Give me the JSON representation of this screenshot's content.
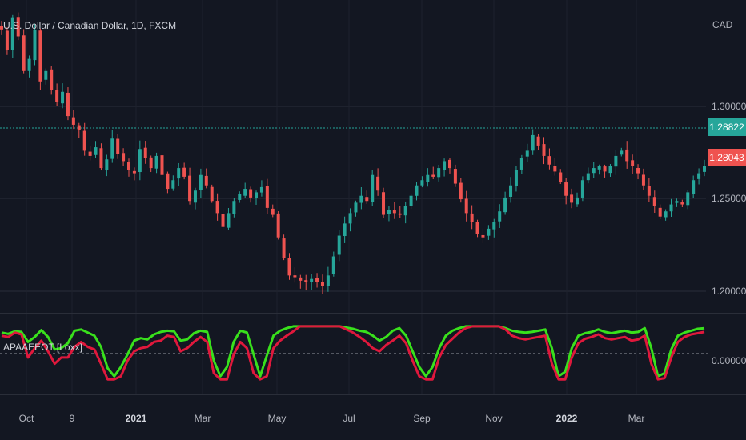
{
  "chart_data": [
    {
      "type": "candlestick",
      "title": "U.S. Dollar / Canadian Dollar, 1D, FXCM",
      "currency_label": "CAD",
      "y_ticks": [
        "1.30000",
        "1.25000",
        "1.20000"
      ],
      "ylim": [
        1.191,
        1.372
      ],
      "last_price": "1.28822",
      "last_price_value": 1.28822,
      "ma_value_label": "1.28043",
      "ma_value": 1.28043,
      "bullish_color": "#26a69a",
      "bearish_color": "#ef5350",
      "close_series": [
        1.355,
        1.343,
        1.362,
        1.351,
        1.331,
        1.338,
        1.355,
        1.325,
        1.331,
        1.32,
        1.313,
        1.319,
        1.305,
        1.3,
        1.297,
        1.285,
        1.282,
        1.287,
        1.275,
        1.28,
        1.292,
        1.283,
        1.279,
        1.274,
        1.272,
        1.286,
        1.281,
        1.275,
        1.282,
        1.271,
        1.263,
        1.268,
        1.275,
        1.27,
        1.256,
        1.262,
        1.271,
        1.265,
        1.256,
        1.249,
        1.241,
        1.249,
        1.256,
        1.26,
        1.263,
        1.258,
        1.261,
        1.264,
        1.252,
        1.248,
        1.235,
        1.223,
        1.213,
        1.212,
        1.21,
        1.209,
        1.211,
        1.209,
        1.207,
        1.213,
        1.224,
        1.236,
        1.243,
        1.249,
        1.255,
        1.259,
        1.256,
        1.271,
        1.262,
        1.248,
        1.251,
        1.249,
        1.248,
        1.253,
        1.259,
        1.265,
        1.268,
        1.271,
        1.27,
        1.275,
        1.279,
        1.275,
        1.266,
        1.257,
        1.249,
        1.244,
        1.237,
        1.235,
        1.24,
        1.244,
        1.25,
        1.258,
        1.265,
        1.274,
        1.281,
        1.285,
        1.294,
        1.288,
        1.282,
        1.277,
        1.273,
        1.267,
        1.259,
        1.255,
        1.258,
        1.268,
        1.272,
        1.275,
        1.276,
        1.273,
        1.276,
        1.282,
        1.285,
        1.279,
        1.276,
        1.272,
        1.265,
        1.259,
        1.253,
        1.247,
        1.25,
        1.254,
        1.256,
        1.254,
        1.261,
        1.268,
        1.272,
        1.276
      ]
    },
    {
      "type": "line",
      "name": "APAAEEOT [Loxx]",
      "y_ticks": [
        "0.00000"
      ],
      "ylim": [
        0,
        1
      ],
      "series": [
        {
          "color": "#39e01c",
          "values": [
            0.85,
            0.83,
            0.87,
            0.86,
            0.7,
            0.78,
            0.89,
            0.78,
            0.58,
            0.6,
            0.68,
            0.88,
            0.9,
            0.85,
            0.8,
            0.62,
            0.28,
            0.15,
            0.3,
            0.5,
            0.72,
            0.76,
            0.74,
            0.82,
            0.86,
            0.88,
            0.87,
            0.72,
            0.74,
            0.84,
            0.88,
            0.86,
            0.4,
            0.15,
            0.3,
            0.7,
            0.88,
            0.85,
            0.5,
            0.15,
            0.48,
            0.8,
            0.88,
            0.92,
            0.95,
            0.95,
            0.95,
            0.95,
            0.95,
            0.95,
            0.95,
            0.95,
            0.93,
            0.91,
            0.88,
            0.86,
            0.8,
            0.72,
            0.78,
            0.88,
            0.92,
            0.8,
            0.55,
            0.3,
            0.15,
            0.3,
            0.6,
            0.8,
            0.88,
            0.92,
            0.95,
            0.95,
            0.95,
            0.95,
            0.95,
            0.95,
            0.92,
            0.88,
            0.86,
            0.85,
            0.86,
            0.88,
            0.9,
            0.6,
            0.15,
            0.22,
            0.6,
            0.8,
            0.84,
            0.86,
            0.9,
            0.86,
            0.84,
            0.86,
            0.88,
            0.85,
            0.86,
            0.92,
            0.6,
            0.15,
            0.2,
            0.58,
            0.8,
            0.85,
            0.88,
            0.91,
            0.92
          ]
        },
        {
          "color": "#e0183c",
          "values": [
            0.8,
            0.78,
            0.85,
            0.82,
            0.45,
            0.6,
            0.72,
            0.55,
            0.35,
            0.45,
            0.45,
            0.62,
            0.7,
            0.62,
            0.58,
            0.35,
            0.1,
            0.1,
            0.15,
            0.4,
            0.55,
            0.6,
            0.62,
            0.7,
            0.72,
            0.8,
            0.78,
            0.55,
            0.6,
            0.7,
            0.78,
            0.7,
            0.2,
            0.1,
            0.1,
            0.5,
            0.7,
            0.6,
            0.2,
            0.1,
            0.15,
            0.6,
            0.72,
            0.8,
            0.87,
            0.95,
            0.95,
            0.95,
            0.95,
            0.95,
            0.95,
            0.95,
            0.9,
            0.85,
            0.78,
            0.7,
            0.6,
            0.55,
            0.65,
            0.72,
            0.8,
            0.68,
            0.4,
            0.15,
            0.1,
            0.1,
            0.45,
            0.65,
            0.75,
            0.85,
            0.92,
            0.95,
            0.95,
            0.95,
            0.95,
            0.95,
            0.9,
            0.8,
            0.76,
            0.74,
            0.76,
            0.78,
            0.8,
            0.35,
            0.1,
            0.1,
            0.45,
            0.68,
            0.75,
            0.78,
            0.82,
            0.76,
            0.74,
            0.76,
            0.78,
            0.72,
            0.74,
            0.8,
            0.35,
            0.1,
            0.12,
            0.45,
            0.7,
            0.78,
            0.82,
            0.84,
            0.86
          ]
        }
      ]
    }
  ],
  "x_ticks": [
    "Oct",
    "9",
    "2021",
    "Mar",
    "May",
    "Jul",
    "Sep",
    "Nov",
    "2022",
    "Mar"
  ],
  "x_ticks_bold": [
    "2021",
    "2022"
  ]
}
